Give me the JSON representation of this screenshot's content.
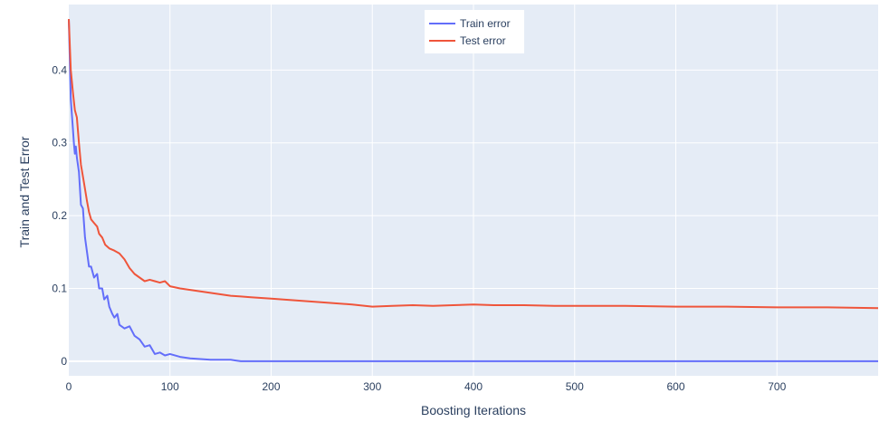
{
  "chart_data": {
    "type": "line",
    "title": "",
    "xlabel": "Boosting Iterations",
    "ylabel": "Train and Test Error",
    "xlim": [
      0,
      800
    ],
    "ylim": [
      -0.02,
      0.49
    ],
    "x_ticks": [
      0,
      100,
      200,
      300,
      400,
      500,
      600,
      700
    ],
    "x_tick_labels": [
      "0",
      "100",
      "200",
      "300",
      "400",
      "500",
      "600",
      "700"
    ],
    "y_ticks": [
      0,
      0.1,
      0.2,
      0.3,
      0.4
    ],
    "y_tick_labels": [
      "0",
      "0.1",
      "0.2",
      "0.3",
      "0.4"
    ],
    "grid": true,
    "legend_position": "top-center",
    "colors": {
      "plot_bg": "#e5ecf6",
      "grid": "#ffffff",
      "text": "#2a3f5f"
    },
    "series": [
      {
        "name": "Train error",
        "color": "#636efa",
        "x": [
          0,
          2,
          4,
          5,
          6,
          7,
          8,
          10,
          12,
          14,
          16,
          18,
          20,
          22,
          25,
          28,
          30,
          33,
          35,
          38,
          40,
          43,
          45,
          48,
          50,
          55,
          60,
          65,
          70,
          75,
          80,
          85,
          90,
          95,
          100,
          110,
          120,
          130,
          140,
          150,
          160,
          165,
          170,
          200,
          300,
          400,
          500,
          600,
          700,
          800
        ],
        "y": [
          0.47,
          0.36,
          0.32,
          0.3,
          0.285,
          0.295,
          0.28,
          0.26,
          0.215,
          0.21,
          0.17,
          0.15,
          0.13,
          0.13,
          0.115,
          0.12,
          0.1,
          0.1,
          0.085,
          0.09,
          0.075,
          0.065,
          0.06,
          0.065,
          0.05,
          0.045,
          0.048,
          0.035,
          0.03,
          0.02,
          0.022,
          0.01,
          0.012,
          0.008,
          0.01,
          0.006,
          0.004,
          0.003,
          0.002,
          0.002,
          0.002,
          0.001,
          0,
          0,
          0,
          0,
          0,
          0,
          0,
          0
        ]
      },
      {
        "name": "Test error",
        "color": "#ef553b",
        "x": [
          0,
          2,
          4,
          6,
          8,
          10,
          12,
          15,
          18,
          20,
          22,
          25,
          28,
          30,
          33,
          36,
          40,
          45,
          50,
          55,
          60,
          65,
          70,
          75,
          80,
          85,
          90,
          95,
          100,
          110,
          120,
          130,
          140,
          150,
          160,
          170,
          180,
          200,
          220,
          240,
          260,
          280,
          300,
          320,
          340,
          360,
          380,
          400,
          420,
          450,
          480,
          500,
          550,
          600,
          650,
          700,
          750,
          800
        ],
        "y": [
          0.47,
          0.4,
          0.37,
          0.345,
          0.335,
          0.3,
          0.27,
          0.245,
          0.22,
          0.205,
          0.195,
          0.19,
          0.185,
          0.175,
          0.17,
          0.16,
          0.155,
          0.152,
          0.148,
          0.14,
          0.128,
          0.12,
          0.115,
          0.11,
          0.112,
          0.11,
          0.108,
          0.11,
          0.103,
          0.1,
          0.098,
          0.096,
          0.094,
          0.092,
          0.09,
          0.089,
          0.088,
          0.086,
          0.084,
          0.082,
          0.08,
          0.078,
          0.075,
          0.076,
          0.077,
          0.076,
          0.077,
          0.078,
          0.077,
          0.077,
          0.076,
          0.076,
          0.076,
          0.075,
          0.075,
          0.074,
          0.074,
          0.073
        ]
      }
    ]
  }
}
